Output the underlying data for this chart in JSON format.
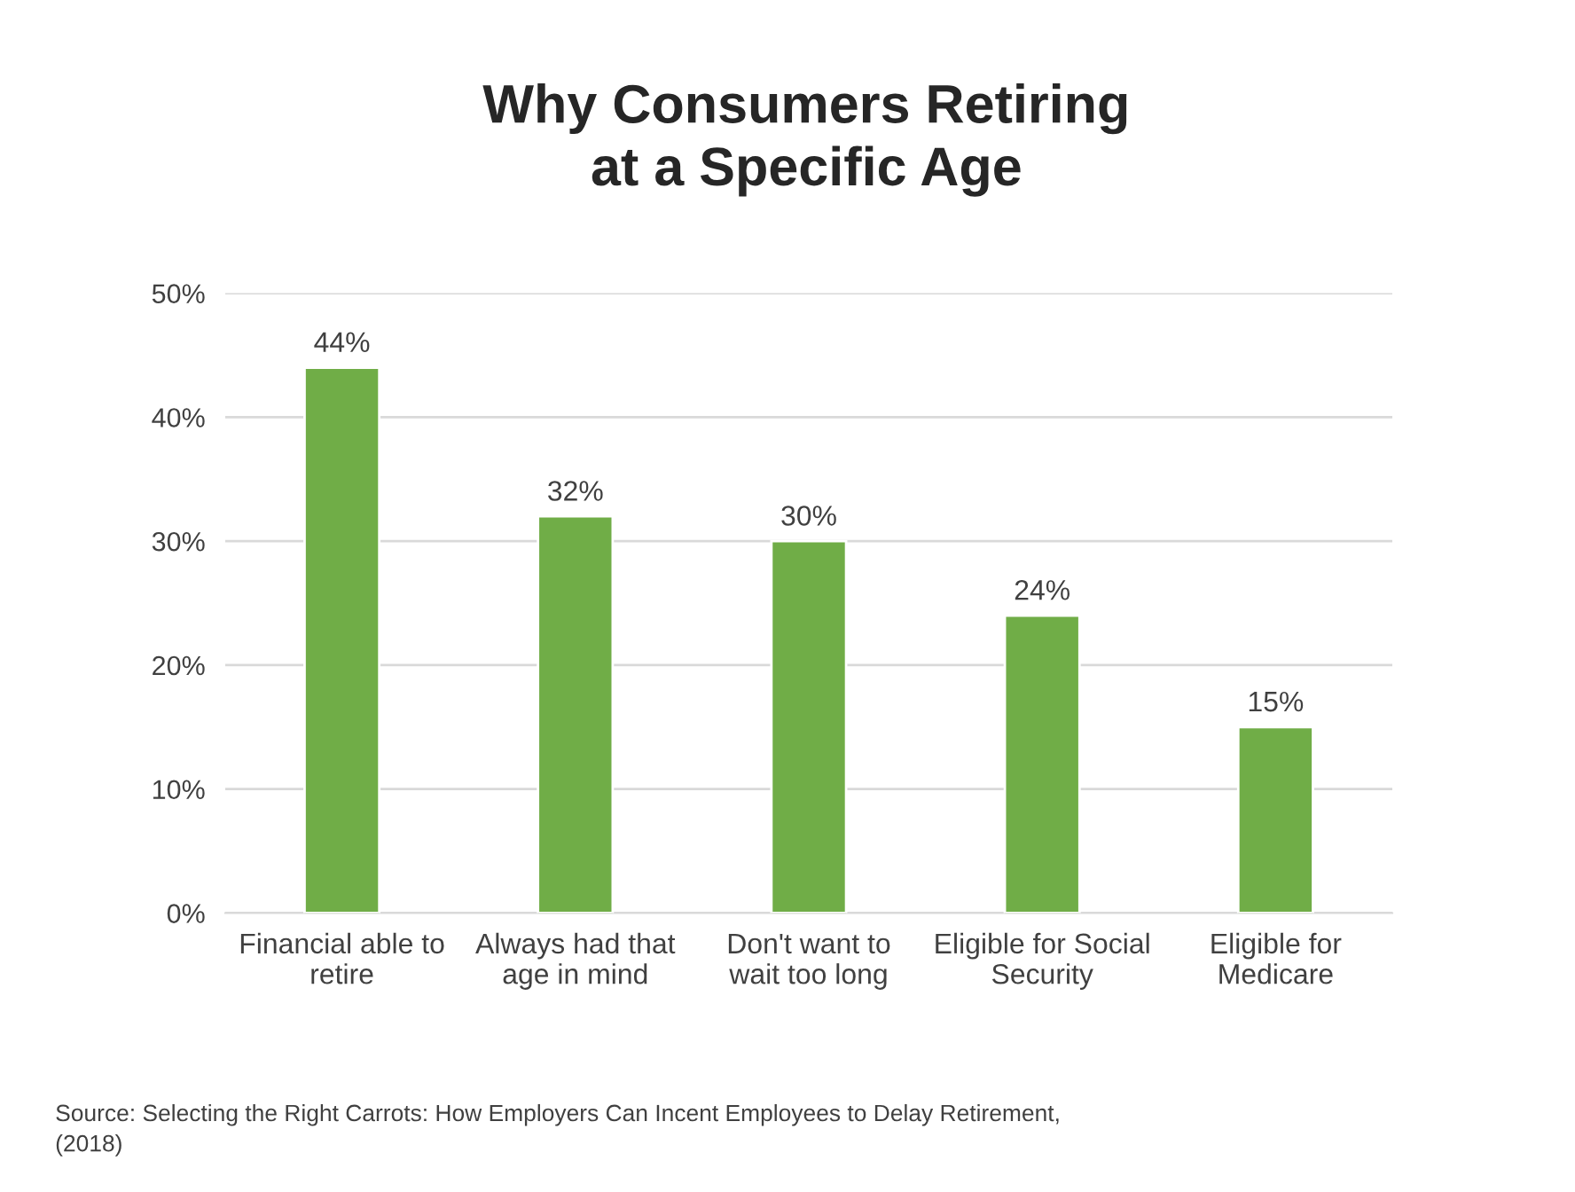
{
  "chart_data": {
    "type": "bar",
    "title": "Why Consumers Retiring\nat a Specific Age",
    "categories": [
      "Financial able to\nretire",
      "Always had that\nage in mind",
      "Don't want to\nwait too long",
      "Eligible for Social\nSecurity",
      "Eligible for\nMedicare"
    ],
    "values": [
      44,
      32,
      30,
      24,
      15
    ],
    "color": "#70ad47",
    "value_labels": [
      "44%",
      "32%",
      "30%",
      "24%",
      "15%"
    ],
    "ylim": [
      0,
      50
    ],
    "yticks": [
      {
        "value": 0,
        "label": "0%"
      },
      {
        "value": 10,
        "label": "10%"
      },
      {
        "value": 20,
        "label": "20%"
      },
      {
        "value": 30,
        "label": "30%"
      },
      {
        "value": 40,
        "label": "40%"
      },
      {
        "value": 50,
        "label": "50%"
      }
    ],
    "grid": "y",
    "annotations": [
      "Source: Selecting the Right Carrots: How Employers Can Incent Employees to Delay Retirement,\n(2018)"
    ]
  }
}
